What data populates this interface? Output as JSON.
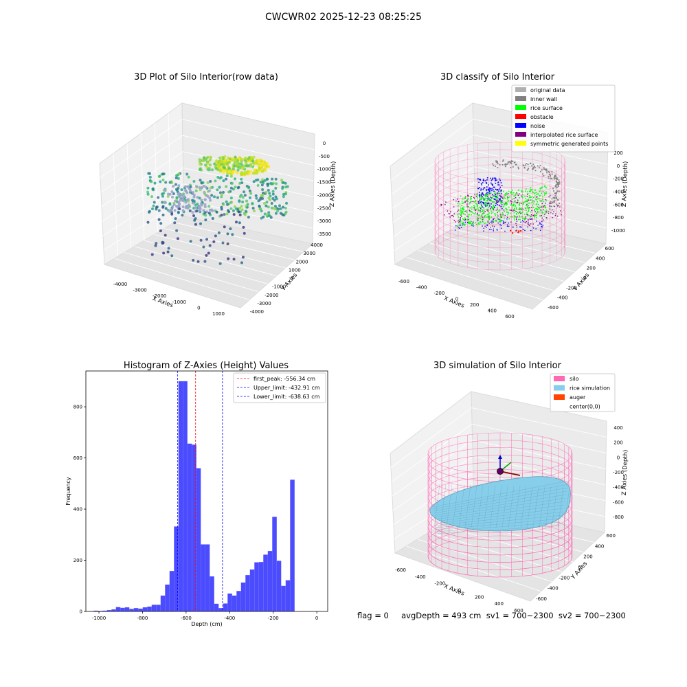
{
  "figure": {
    "suptitle": "CWCWR02 2025-12-23 08:25:25",
    "footer": "flag = 0     avgDepth = 493 cm  sv1 = 700~2300  sv2 = 700~2300"
  },
  "panel_raw": {
    "title": "3D Plot of Silo Interior(row data)",
    "xlabel": "X Axies",
    "ylabel": "Y Axies",
    "zlabel": "Z Axies (Depth)",
    "xticks": [
      "-4000",
      "-3000",
      "-2000",
      "-1000",
      "0",
      "1000"
    ],
    "yticks": [
      "4000",
      "3000",
      "2000",
      "1000",
      "0",
      "-1000",
      "-2000",
      "-3000",
      "-4000"
    ],
    "zticks": [
      "0",
      "-500",
      "-1000",
      "-1500",
      "-2000",
      "-2500",
      "-3000",
      "-3500"
    ]
  },
  "panel_classify": {
    "title": "3D classify of Silo Interior",
    "xlabel": "X Axies",
    "ylabel": "Y Axies",
    "zlabel": "Z Axies (Depth)",
    "xticks": [
      "-600",
      "-400",
      "-200",
      "0",
      "200",
      "400",
      "600"
    ],
    "yticks": [
      "600",
      "400",
      "200",
      "0",
      "-200",
      "-400",
      "-600"
    ],
    "zticks": [
      "200",
      "0",
      "-200",
      "-400",
      "-600",
      "-800",
      "-1000"
    ],
    "legend": [
      {
        "label": "original data",
        "color": "#b0b0b0"
      },
      {
        "label": "inner wall",
        "color": "#808080"
      },
      {
        "label": "rice surface",
        "color": "#00ff00"
      },
      {
        "label": "obstacle",
        "color": "#ff0000"
      },
      {
        "label": "noise",
        "color": "#0000ff"
      },
      {
        "label": "interpolated rice surface",
        "color": "#800080"
      },
      {
        "label": "symmetric generated points",
        "color": "#ffff00"
      }
    ]
  },
  "panel_simulation": {
    "title": "3D simulation of Silo Interior",
    "xlabel": "X Axies",
    "ylabel": "Y Axies",
    "zlabel": "Z Axies (Depth)",
    "xticks": [
      "-600",
      "-400",
      "-200",
      "0",
      "200",
      "400",
      "600"
    ],
    "yticks": [
      "600",
      "400",
      "200",
      "0",
      "-200",
      "-400",
      "-600"
    ],
    "zticks": [
      "400",
      "200",
      "0",
      "-200",
      "-400",
      "-600",
      "-800"
    ],
    "legend": [
      {
        "label": "silo",
        "color": "#ff69b4"
      },
      {
        "label": "rice simulation",
        "color": "#87ceeb"
      },
      {
        "label": "auger",
        "color": "#ff4500"
      },
      {
        "label": "center(0,0)",
        "color": ""
      }
    ]
  },
  "chart_data": {
    "type": "bar",
    "title": "Histogram of Z-Axies (Height) Values",
    "xlabel": "Depth (cm)",
    "ylabel": "Frequency",
    "xlim": [
      -1060,
      50
    ],
    "ylim": [
      0,
      940
    ],
    "xticks": [
      -1000,
      -800,
      -600,
      -400,
      -200,
      0
    ],
    "yticks": [
      0,
      200,
      400,
      600,
      800
    ],
    "bar_color": "#4c4cff",
    "bin_width": 20.5,
    "bin_start": -1045,
    "values": [
      1,
      3,
      2,
      3,
      5,
      8,
      17,
      14,
      16,
      10,
      13,
      11,
      16,
      19,
      26,
      26,
      62,
      105,
      158,
      332,
      900,
      900,
      656,
      652,
      560,
      262,
      262,
      137,
      30,
      13,
      31,
      70,
      62,
      80,
      113,
      142,
      164,
      192,
      193,
      222,
      236,
      370,
      198,
      100,
      122,
      515
    ],
    "vlines": [
      {
        "label": "first_peak: -556.34 cm",
        "x": -556.34,
        "color": "#ff0000"
      },
      {
        "label": "Upper_limit: -432.91 cm",
        "x": -432.91,
        "color": "#0000ff"
      },
      {
        "label": "Lower_limit: -638.63 cm",
        "x": -638.63,
        "color": "#0000ff"
      }
    ],
    "legend_position": "top-right"
  }
}
